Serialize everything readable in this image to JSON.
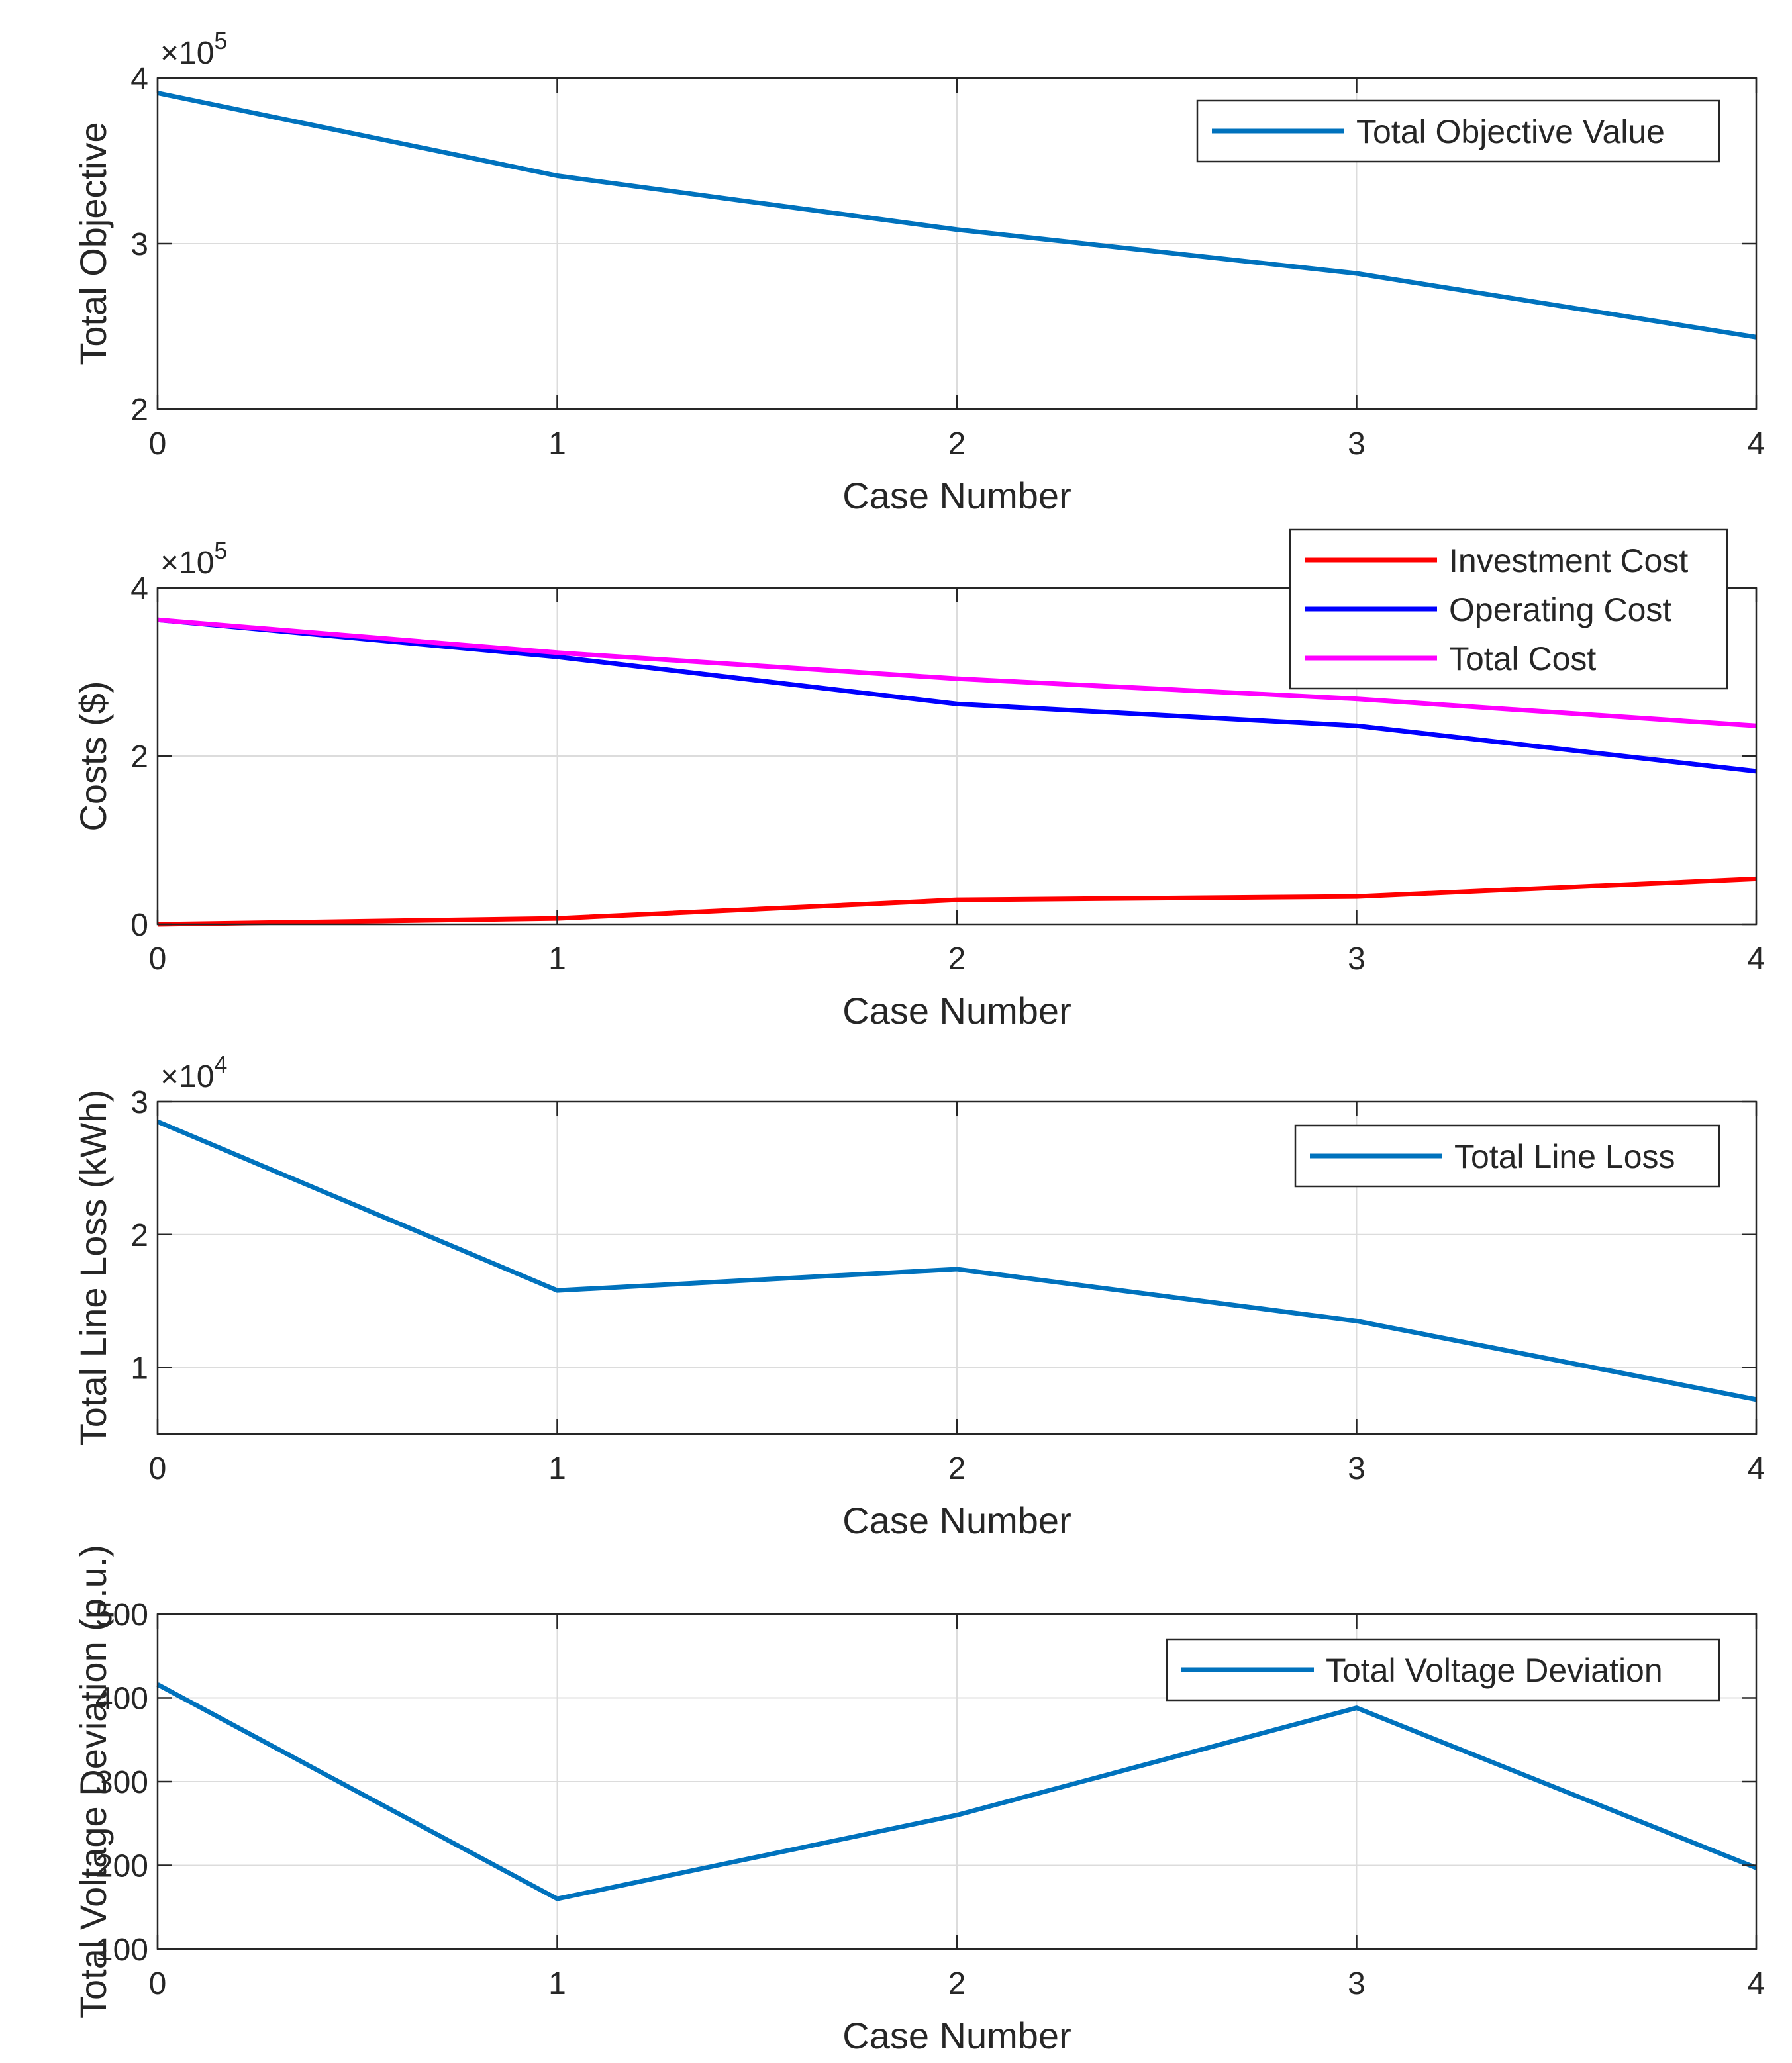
{
  "chart_data": [
    {
      "type": "line",
      "xlabel": "Case Number",
      "ylabel": "Total Objective",
      "x": [
        0,
        1,
        2,
        3,
        4
      ],
      "xticks": [
        "0",
        "1",
        "2",
        "3",
        "4"
      ],
      "ylim": [
        200000,
        400000
      ],
      "yticks": [
        200000,
        300000,
        400000
      ],
      "ytick_labels": [
        "2",
        "3",
        "4"
      ],
      "exponent_prefix": "×10",
      "exponent": "5",
      "grid": true,
      "legend_position": "top-right",
      "series": [
        {
          "name": "Total Objective Value",
          "color": "#0072BD",
          "values": [
            391000,
            341000,
            308500,
            282000,
            243500
          ]
        }
      ]
    },
    {
      "type": "line",
      "xlabel": "Case Number",
      "ylabel": "Costs ($)",
      "x": [
        0,
        1,
        2,
        3,
        4
      ],
      "xticks": [
        "0",
        "1",
        "2",
        "3",
        "4"
      ],
      "ylim": [
        0,
        400000
      ],
      "yticks": [
        0,
        200000,
        400000
      ],
      "ytick_labels": [
        "0",
        "2",
        "4"
      ],
      "exponent_prefix": "×10",
      "exponent": "5",
      "grid": true,
      "legend_position": "top-right",
      "series": [
        {
          "name": "Investment Cost",
          "color": "#FF0000",
          "values": [
            0,
            7000,
            29000,
            33000,
            54000
          ]
        },
        {
          "name": "Operating Cost",
          "color": "#0000FF",
          "values": [
            362000,
            318000,
            262000,
            236000,
            182000
          ]
        },
        {
          "name": "Total Cost",
          "color": "#FF00FF",
          "values": [
            362000,
            323000,
            292000,
            268000,
            236000
          ]
        }
      ]
    },
    {
      "type": "line",
      "xlabel": "Case Number",
      "ylabel": "Total Line Loss (kWh)",
      "x": [
        0,
        1,
        2,
        3,
        4
      ],
      "xticks": [
        "0",
        "1",
        "2",
        "3",
        "4"
      ],
      "ylim": [
        5000,
        30000
      ],
      "yticks": [
        10000,
        20000,
        30000
      ],
      "ytick_labels": [
        "1",
        "2",
        "3"
      ],
      "exponent_prefix": "×10",
      "exponent": "4",
      "grid": true,
      "legend_position": "top-right",
      "series": [
        {
          "name": "Total Line Loss",
          "color": "#0072BD",
          "values": [
            28500,
            15800,
            17400,
            13500,
            7600
          ]
        }
      ]
    },
    {
      "type": "line",
      "xlabel": "Case Number",
      "ylabel": "Total Voltage Deviation (p.u.)",
      "x": [
        0,
        1,
        2,
        3,
        4
      ],
      "xticks": [
        "0",
        "1",
        "2",
        "3",
        "4"
      ],
      "ylim": [
        100,
        500
      ],
      "yticks": [
        100,
        200,
        300,
        400,
        500
      ],
      "ytick_labels": [
        "100",
        "200",
        "300",
        "400",
        "500"
      ],
      "exponent_prefix": "",
      "exponent": "",
      "grid": true,
      "legend_position": "top-right",
      "series": [
        {
          "name": "Total Voltage Deviation",
          "color": "#0072BD",
          "values": [
            416,
            160,
            260,
            388,
            197
          ]
        }
      ]
    }
  ]
}
